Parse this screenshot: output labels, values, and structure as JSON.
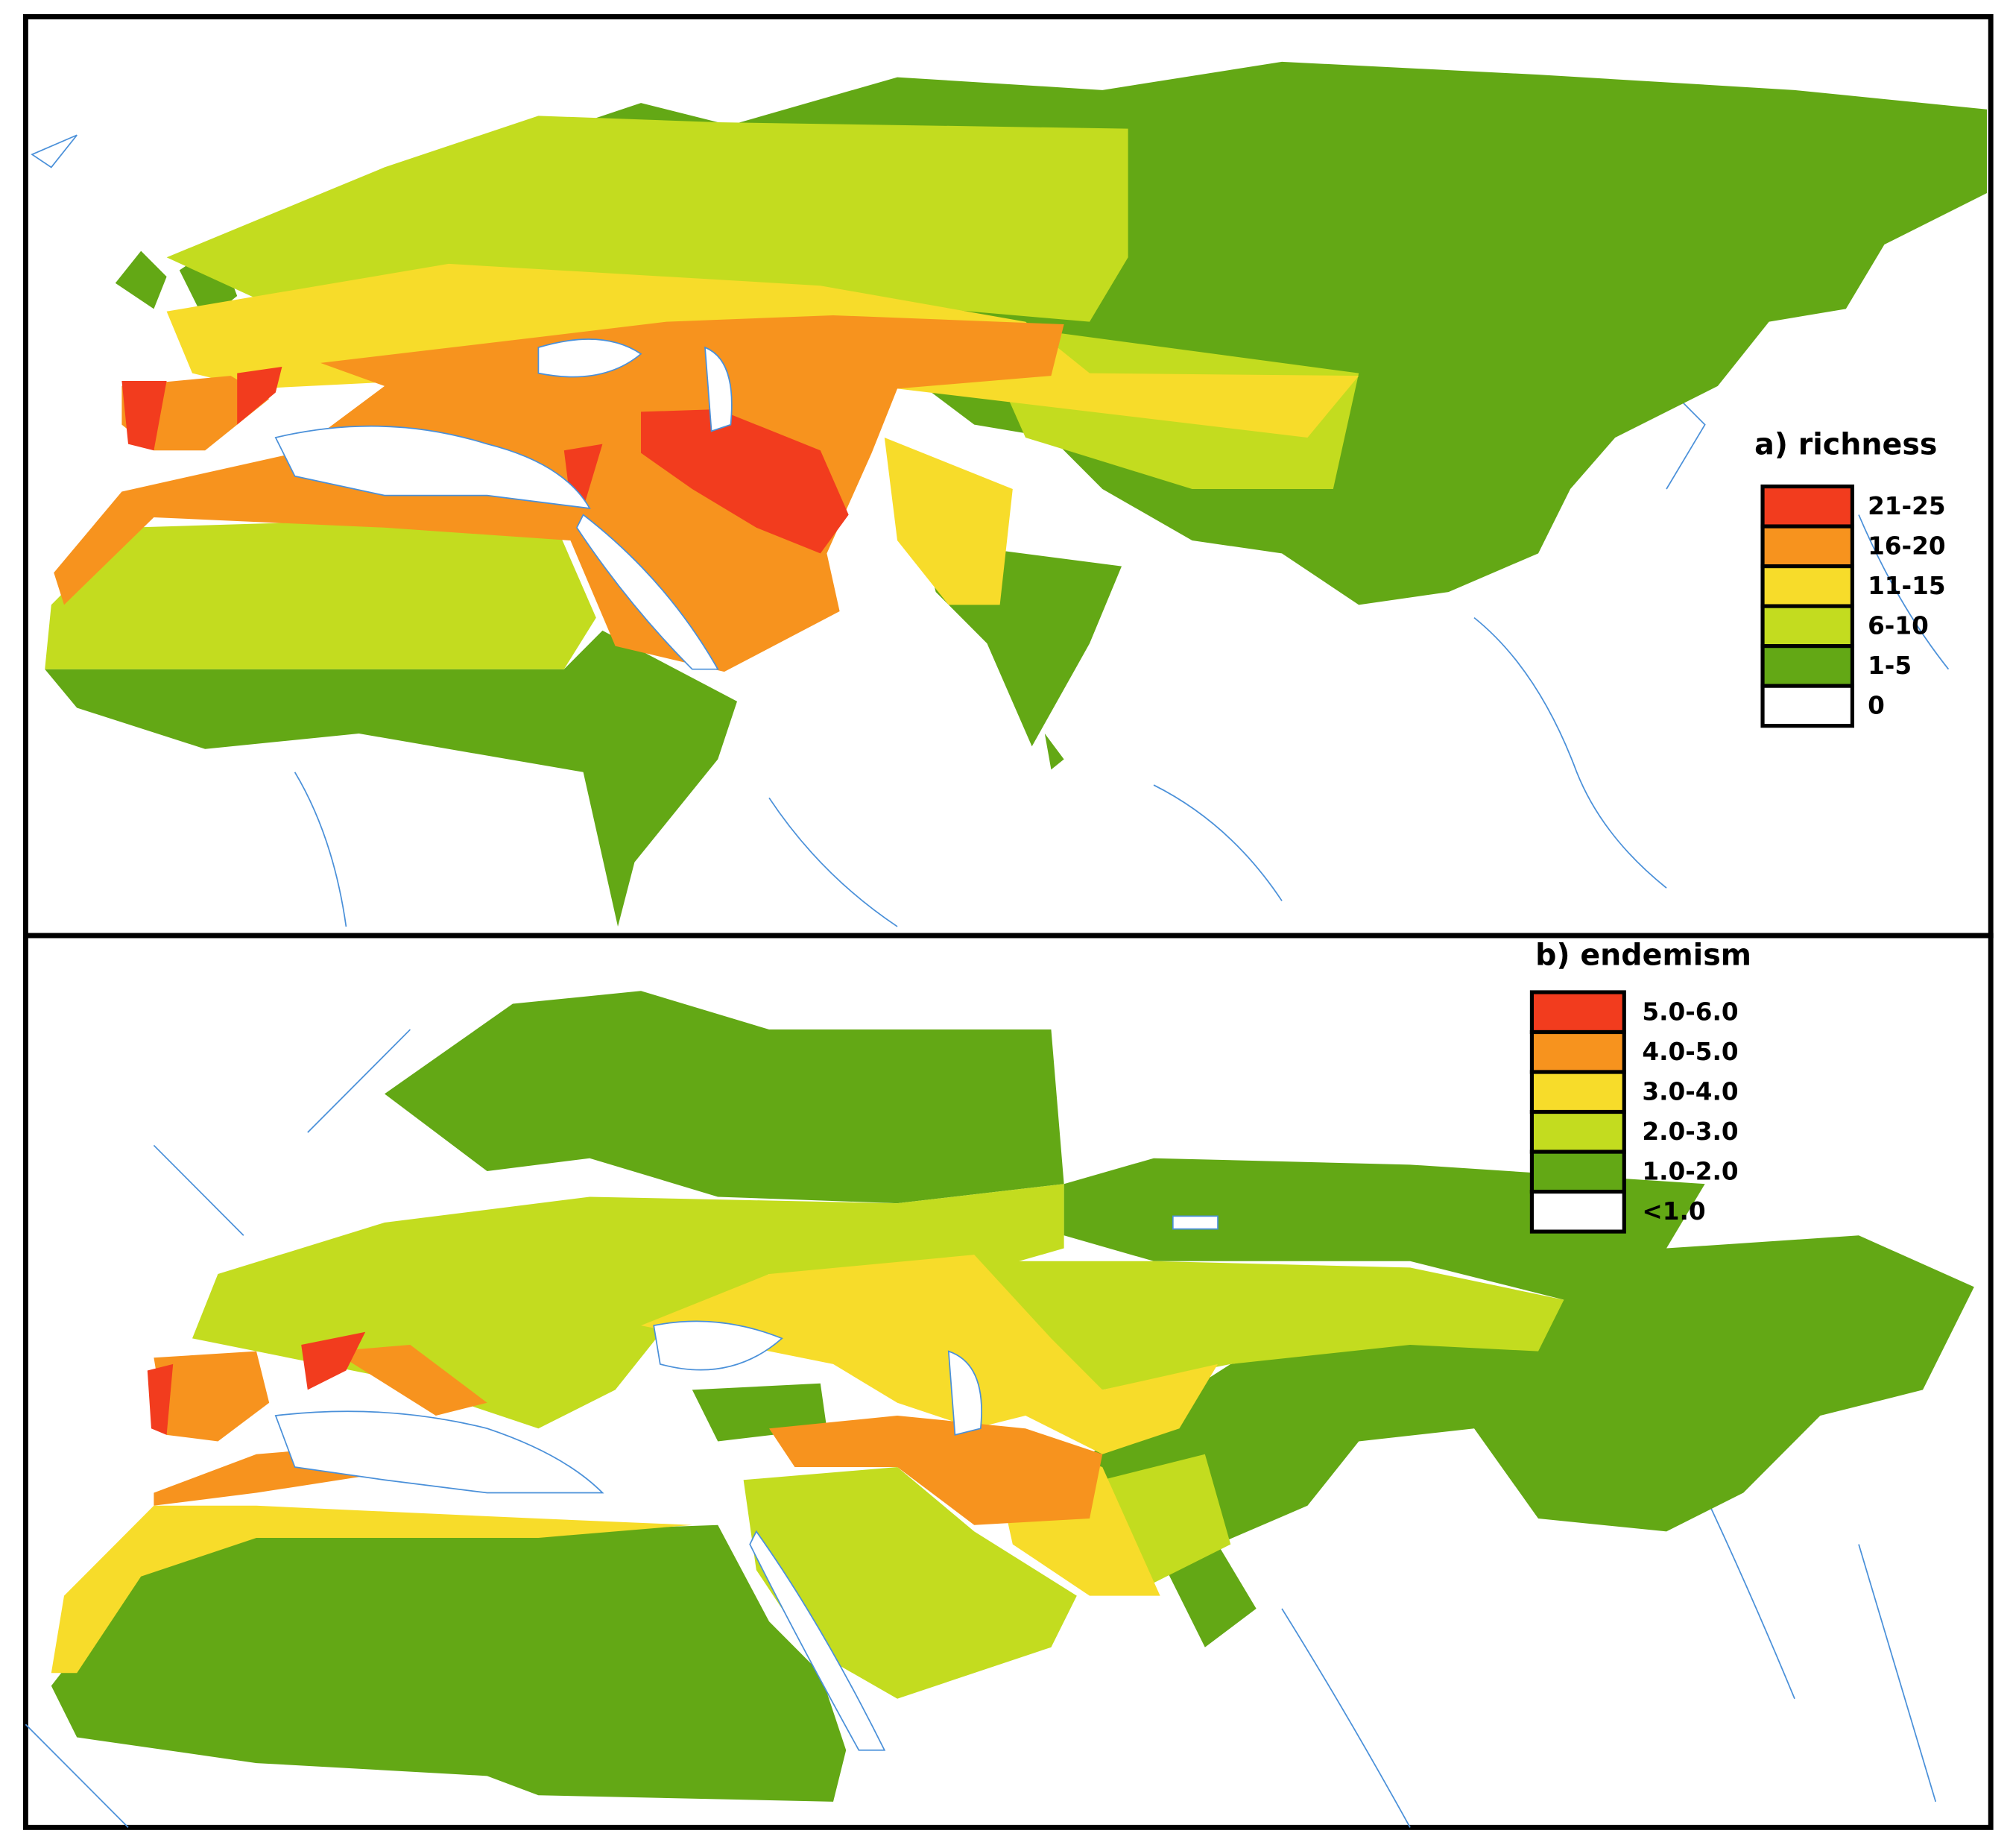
{
  "panels": [
    {
      "legend": {
        "title": "a) richness",
        "items": [
          {
            "label": "21-25",
            "color": "#f23c1e"
          },
          {
            "label": "16-20",
            "color": "#f7931e"
          },
          {
            "label": "11-15",
            "color": "#f7dc2a"
          },
          {
            "label": "6-10",
            "color": "#c3dc1f"
          },
          {
            "label": "1-5",
            "color": "#63a815"
          },
          {
            "label": "0",
            "color": "#ffffff"
          }
        ]
      }
    },
    {
      "legend": {
        "title": "b) endemism",
        "items": [
          {
            "label": "5.0-6.0",
            "color": "#f23c1e"
          },
          {
            "label": "4.0-5.0",
            "color": "#f7931e"
          },
          {
            "label": "3.0-4.0",
            "color": "#f7dc2a"
          },
          {
            "label": "2.0-3.0",
            "color": "#c3dc1f"
          },
          {
            "label": "1.0-2.0",
            "color": "#63a815"
          },
          {
            "label": "<1.0",
            "color": "#ffffff"
          }
        ]
      }
    }
  ]
}
